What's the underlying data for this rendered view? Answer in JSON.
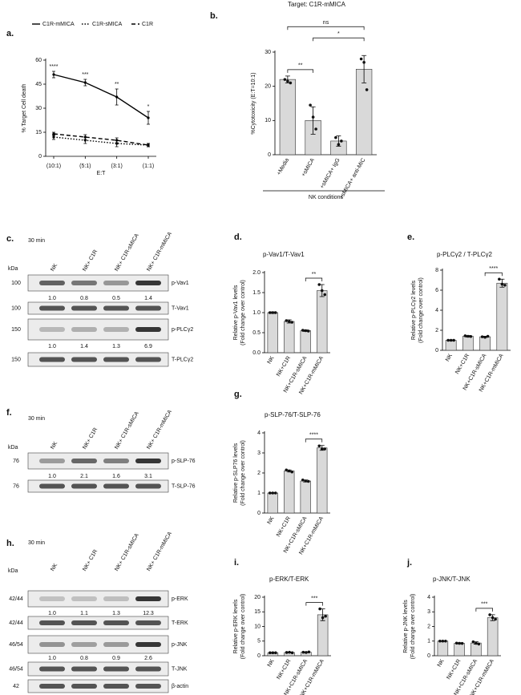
{
  "chart_data": [
    {
      "type": "line",
      "panel": "a.",
      "categories": [
        "(10:1)",
        "(5:1)",
        "(3:1)",
        "(1:1)"
      ],
      "xlabel": "E:T",
      "ylabel": [
        "% Target Cell death"
      ],
      "ylim": [
        0,
        60
      ],
      "yticks": [
        0,
        15,
        30,
        45,
        60
      ],
      "series": [
        {
          "name": "C1R-mMICA",
          "color": "#000000",
          "line_style": "solid",
          "values": [
            51,
            46,
            37,
            24
          ],
          "errors": [
            2,
            2,
            5,
            4
          ]
        },
        {
          "name": "C1R-sMICA",
          "color": "#000000",
          "line_style": "dotted",
          "values": [
            12,
            10,
            8,
            7
          ],
          "errors": [
            1.5,
            2,
            2,
            1
          ]
        },
        {
          "name": "C1R",
          "color": "#000000",
          "line_style": "dashed",
          "values": [
            14,
            12,
            10,
            7
          ],
          "errors": [
            1,
            1.5,
            1.5,
            1
          ]
        }
      ],
      "annotations": [
        "****",
        "***",
        "**",
        "*"
      ]
    },
    {
      "type": "bar",
      "panel": "b.",
      "title": "Target: C1R-mMICA",
      "categories": [
        "+Media",
        "+sMICA",
        "+sMICA+ IgG",
        "+sMICA+ anti-MIC"
      ],
      "xlabel": "NK conditions",
      "ylabel": [
        "%Cytotoxicity (E:T=10:1)"
      ],
      "ylim": [
        0,
        30
      ],
      "yticks": [
        0,
        10,
        20,
        30
      ],
      "color": "#d9d9d9",
      "values": [
        22,
        10,
        4,
        25
      ],
      "errors": [
        1,
        4,
        1.5,
        4
      ],
      "points": [
        [
          22,
          21.5,
          21
        ],
        [
          14.5,
          11,
          7.5
        ],
        [
          5,
          3,
          4
        ],
        [
          28,
          27,
          19
        ]
      ],
      "comparisons": [
        {
          "between": [
            "+Media",
            "+sMICA"
          ],
          "label": "**"
        },
        {
          "between": [
            "+sMICA",
            "+sMICA+ anti-MIC"
          ],
          "label": "*"
        },
        {
          "between": [
            "+Media",
            "+sMICA+ anti-MIC"
          ],
          "label": "ns"
        }
      ]
    },
    {
      "type": "bar",
      "panel": "d.",
      "title": "p-Vav1/T-Vav1",
      "categories": [
        "NK",
        "NK+C1R",
        "NK+C1R-sMICA",
        "NK+C1R-mMICA"
      ],
      "ylabel": [
        "Relative p-Vav1 levels",
        "(Fold change over control)"
      ],
      "ylim": [
        0,
        2
      ],
      "yticks": [
        {
          "value": 0,
          "label": "0.0"
        },
        0.5,
        {
          "value": 1,
          "label": "1.0"
        },
        1.5,
        {
          "value": 2,
          "label": "2.0"
        }
      ],
      "color": "#d9d9d9",
      "values": [
        1.0,
        0.78,
        0.55,
        1.55
      ],
      "errors": [
        0.02,
        0.04,
        0.02,
        0.15
      ],
      "points": [
        [
          1,
          1,
          1
        ],
        [
          0.8,
          0.78,
          0.76
        ],
        [
          0.56,
          0.55,
          0.54
        ],
        [
          1.7,
          1.55,
          1.45
        ]
      ],
      "comparisons": [
        {
          "between": [
            "NK+C1R-sMICA",
            "NK+C1R-mMICA"
          ],
          "label": "**"
        }
      ]
    },
    {
      "type": "bar",
      "panel": "e.",
      "title": "p-PLCγ2 / T-PLCγ2",
      "categories": [
        "NK",
        "NK+C1R",
        "NK+C1R-sMICA",
        "NK+C1R-mMICA"
      ],
      "ylabel": [
        "Relative p-PLCγ2 levels",
        "(Fold change over control)"
      ],
      "ylim": [
        0,
        8
      ],
      "yticks": [
        0,
        2,
        4,
        6,
        8
      ],
      "color": "#d9d9d9",
      "values": [
        1,
        1.4,
        1.35,
        6.7
      ],
      "errors": [
        0.05,
        0.08,
        0.06,
        0.4
      ],
      "points": [
        [
          1,
          1,
          1
        ],
        [
          1.45,
          1.4,
          1.38
        ],
        [
          1.35,
          1.3,
          1.4
        ],
        [
          7.1,
          6.6,
          6.5
        ]
      ],
      "comparisons": [
        {
          "between": [
            "NK+C1R-sMICA",
            "NK+C1R-mMICA"
          ],
          "label": "****"
        }
      ]
    },
    {
      "type": "bar",
      "panel": "g.",
      "title": "p-SLP-76/T-SLP-76",
      "categories": [
        "NK",
        "NK+C1R",
        "NK+C1R-sMICA",
        "NK+C1R-mMICA"
      ],
      "ylabel": [
        "Relative p-SLP76 levels",
        "(Fold change over control)"
      ],
      "ylim": [
        0,
        4
      ],
      "yticks": [
        0,
        1,
        2,
        3,
        4
      ],
      "color": "#d9d9d9",
      "values": [
        1,
        2.1,
        1.6,
        3.25
      ],
      "errors": [
        0.02,
        0.05,
        0.05,
        0.12
      ],
      "points": [
        [
          1,
          1,
          1
        ],
        [
          2.15,
          2.1,
          2.05
        ],
        [
          1.65,
          1.6,
          1.58
        ],
        [
          3.35,
          3.2,
          3.2
        ]
      ],
      "comparisons": [
        {
          "between": [
            "NK+C1R-sMICA",
            "NK+C1R-mMICA"
          ],
          "label": "****"
        }
      ]
    },
    {
      "type": "bar",
      "panel": "i.",
      "title": "p-ERK/T-ERK",
      "categories": [
        "NK",
        "NK+C1R",
        "NK+C1R-sMICA",
        "NK+C1R-mMICA"
      ],
      "ylabel": [
        "Relative p-ERK levels",
        "(Fold change over control)"
      ],
      "ylim": [
        0,
        20
      ],
      "yticks": [
        0,
        5,
        10,
        15,
        20
      ],
      "color": "#d9d9d9",
      "values": [
        1,
        1.1,
        1.2,
        14
      ],
      "errors": [
        0.1,
        0.15,
        0.1,
        2
      ],
      "points": [
        [
          1,
          1,
          1
        ],
        [
          1.1,
          1.2,
          1.0
        ],
        [
          1.2,
          1.1,
          1.3
        ],
        [
          16,
          13,
          13.5
        ]
      ],
      "comparisons": [
        {
          "between": [
            "NK+C1R-sMICA",
            "NK+C1R-mMICA"
          ],
          "label": "***"
        }
      ]
    },
    {
      "type": "bar",
      "panel": "j.",
      "title": "p-JNK/T-JNK",
      "categories": [
        "NK",
        "NK+C1R",
        "NK+C1R-sMICA",
        "NK+C1R-mMICA"
      ],
      "ylabel": [
        "Relative p-JNK levels",
        "(Fold change over control)"
      ],
      "ylim": [
        0,
        4
      ],
      "yticks": [
        0,
        1,
        2,
        3,
        4
      ],
      "color": "#d9d9d9",
      "values": [
        1,
        0.85,
        0.87,
        2.6
      ],
      "errors": [
        0.02,
        0.04,
        0.08,
        0.2
      ],
      "points": [
        [
          1,
          1,
          1
        ],
        [
          0.86,
          0.85,
          0.84
        ],
        [
          0.95,
          0.85,
          0.8
        ],
        [
          2.8,
          2.6,
          2.5
        ]
      ],
      "comparisons": [
        {
          "between": [
            "NK+C1R-sMICA",
            "NK+C1R-mMICA"
          ],
          "label": "***"
        }
      ]
    }
  ],
  "blots": [
    {
      "panel": "c.",
      "time": "30 min",
      "kda_label": "kDa",
      "lanes": [
        "NK",
        "NK+ C1R",
        "NK+ C1R-sMICA",
        "NK+ C1R-mMICA"
      ],
      "rows": [
        {
          "kda": "100",
          "label": "p-Vav1",
          "quant": [
            "1.0",
            "0.8",
            "0.5",
            "1.4"
          ]
        },
        {
          "kda": "100",
          "label": "T-Vav1"
        },
        {
          "kda": "150",
          "label": "p-PLCγ2",
          "quant": [
            "1.0",
            "1.4",
            "1.3",
            "6.9"
          ]
        },
        {
          "kda": "150",
          "label": "T-PLCγ2"
        }
      ]
    },
    {
      "panel": "f.",
      "time": "30 min",
      "kda_label": "kDa",
      "lanes": [
        "NK",
        "NK+ C1R",
        "NK+ C1R-sMICA",
        "NK+ C1R-mMICA"
      ],
      "rows": [
        {
          "kda": "76",
          "label": "p-SLP-76",
          "quant": [
            "1.0",
            "2.1",
            "1.6",
            "3.1"
          ]
        },
        {
          "kda": "76",
          "label": "T-SLP-76"
        }
      ]
    },
    {
      "panel": "h.",
      "time": "30 min",
      "kda_label": "kDa",
      "lanes": [
        "NK",
        "NK+ C1R",
        "NK+ C1R-sMICA",
        "NK+ C1R-mMICA"
      ],
      "rows": [
        {
          "kda": "42/44",
          "label": "p-ERK",
          "quant": [
            "1.0",
            "1.1",
            "1.3",
            "12.3"
          ]
        },
        {
          "kda": "42/44",
          "label": "T-ERK"
        },
        {
          "kda": "46/54",
          "label": "p-JNK",
          "quant": [
            "1.0",
            "0.8",
            "0.9",
            "2.6"
          ]
        },
        {
          "kda": "46/54",
          "label": "T-JNK"
        },
        {
          "kda": "42",
          "label": "β-actin"
        }
      ]
    }
  ]
}
